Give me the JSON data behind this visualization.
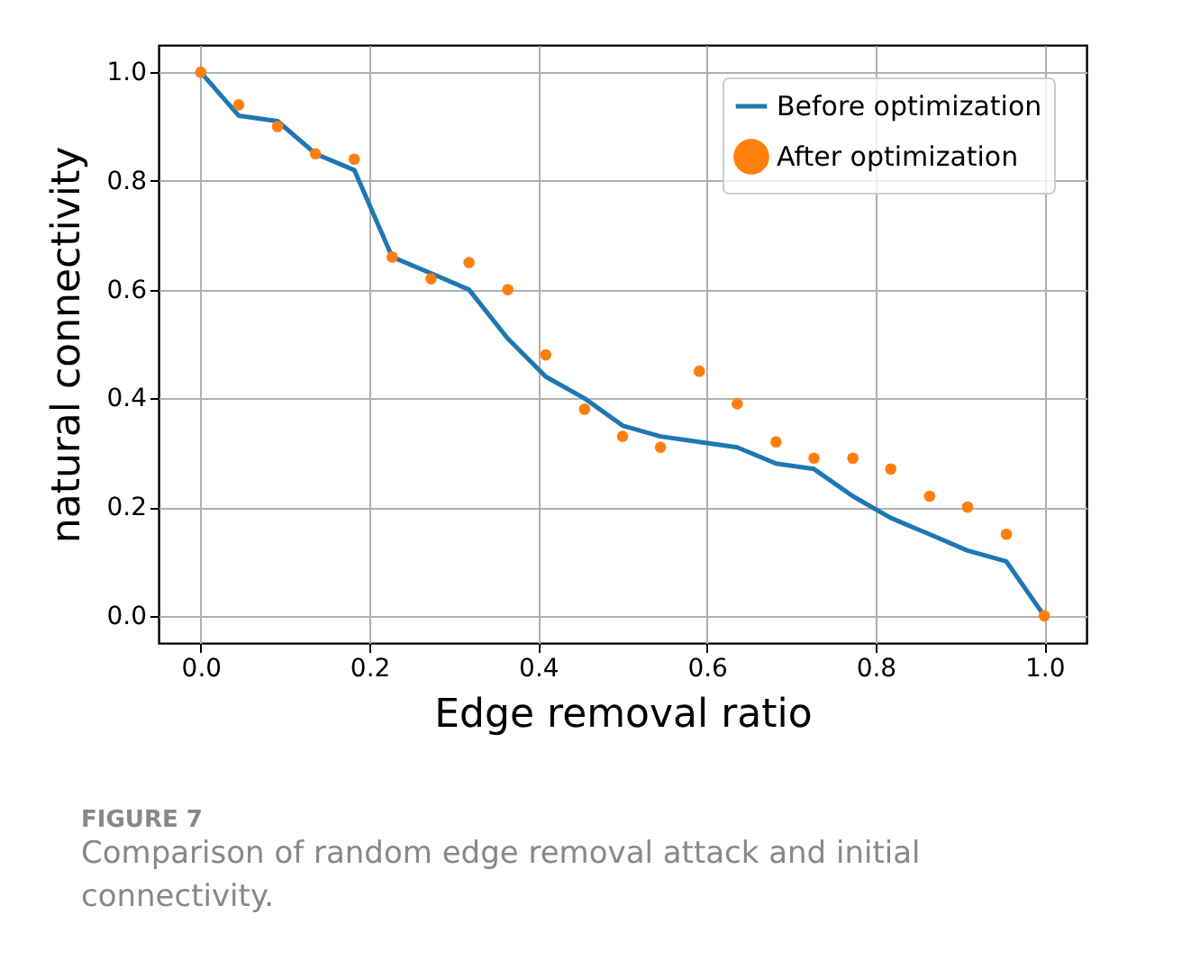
{
  "chart_data": {
    "type": "line",
    "xlabel": "Edge removal ratio",
    "ylabel": "natural connectivity",
    "annotations": [
      "FIGURE 7",
      "Comparison of random edge removal attack and initial connectivity."
    ],
    "x": [
      0,
      0.045,
      0.091,
      0.136,
      0.182,
      0.227,
      0.273,
      0.318,
      0.364,
      0.409,
      0.455,
      0.5,
      0.545,
      0.591,
      0.636,
      0.682,
      0.727,
      0.773,
      0.818,
      0.864,
      0.909,
      0.955,
      1
    ],
    "series": [
      {
        "name": "Before optimization",
        "color": "#1f77b4",
        "values": [
          1.0,
          0.92,
          0.91,
          0.85,
          0.82,
          0.66,
          0.63,
          0.6,
          0.51,
          0.44,
          0.4,
          0.35,
          0.33,
          0.32,
          0.31,
          0.28,
          0.27,
          0.22,
          0.18,
          0.15,
          0.12,
          0.1,
          0.0
        ]
      },
      {
        "name": "After optimization",
        "type": "scatter",
        "color": "#ff7f0e",
        "values": [
          1.0,
          0.94,
          0.9,
          0.85,
          0.84,
          0.66,
          0.62,
          0.65,
          0.6,
          0.48,
          0.38,
          0.33,
          0.31,
          0.45,
          0.39,
          0.32,
          0.29,
          0.29,
          0.27,
          0.22,
          0.2,
          0.15,
          0.0
        ]
      }
    ],
    "xlim": [
      -0.05,
      1.05
    ],
    "xticks": [
      {
        "value": 0,
        "label": "0.0"
      },
      {
        "value": 0.2,
        "label": "0.2"
      },
      {
        "value": 0.4,
        "label": "0.4"
      },
      {
        "value": 0.6,
        "label": "0.6"
      },
      {
        "value": 0.8,
        "label": "0.8"
      },
      {
        "value": 1,
        "label": "1.0"
      }
    ],
    "ylim": [
      -0.05,
      1.05
    ],
    "yticks": [
      {
        "value": 0,
        "label": "0.0"
      },
      {
        "value": 0.2,
        "label": "0.2"
      },
      {
        "value": 0.4,
        "label": "0.4"
      },
      {
        "value": 0.6,
        "label": "0.6"
      },
      {
        "value": 0.8,
        "label": "0.8"
      },
      {
        "value": 1,
        "label": "1.0"
      }
    ],
    "grid": true,
    "legend": "top right"
  }
}
